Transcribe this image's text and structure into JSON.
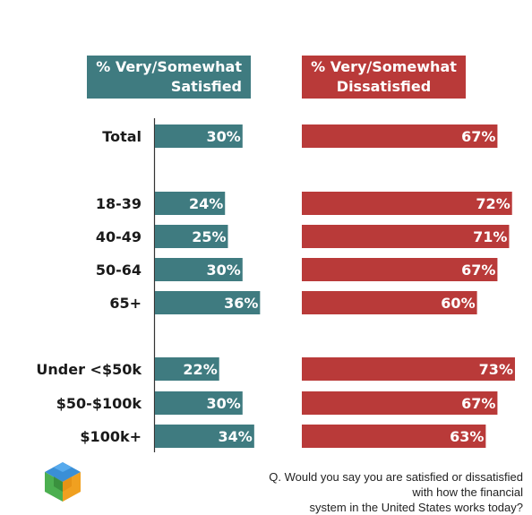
{
  "headers": {
    "satisfied": [
      "% Very/Somewhat",
      "Satisfied"
    ],
    "dissatisfied": [
      "% Very/Somewhat",
      "Dissatisfied"
    ]
  },
  "colors": {
    "satisfied": "#3f7b80",
    "dissatisfied": "#b93a39",
    "axis": "#333333"
  },
  "chart_data": {
    "type": "bar",
    "categories": [
      "Total",
      "18-39",
      "40-49",
      "50-64",
      "65+",
      "Under <$50k",
      "$50-$100k",
      "$100k+"
    ],
    "groups": [
      [
        "Total"
      ],
      [
        "18-39",
        "40-49",
        "50-64",
        "65+"
      ],
      [
        "Under <$50k",
        "$50-$100k",
        "$100k+"
      ]
    ],
    "series": [
      {
        "name": "% Very/Somewhat Satisfied",
        "values": [
          30,
          24,
          25,
          30,
          36,
          22,
          30,
          34
        ],
        "labels": [
          "30%",
          "24%",
          "25%",
          "30%",
          "36%",
          "22%",
          "30%",
          "34%"
        ]
      },
      {
        "name": "% Very/Somewhat Dissatisfied",
        "values": [
          67,
          72,
          71,
          67,
          60,
          73,
          67,
          63
        ],
        "labels": [
          "67%",
          "72%",
          "71%",
          "67%",
          "60%",
          "73%",
          "67%",
          "63%"
        ]
      }
    ],
    "value_unit": "%"
  },
  "footnote": [
    "Q. Would you say you are satisfied or dissatisfied with how the financial",
    "system in the United States works today?"
  ],
  "logo": {
    "icon": "cube-logo-icon"
  }
}
